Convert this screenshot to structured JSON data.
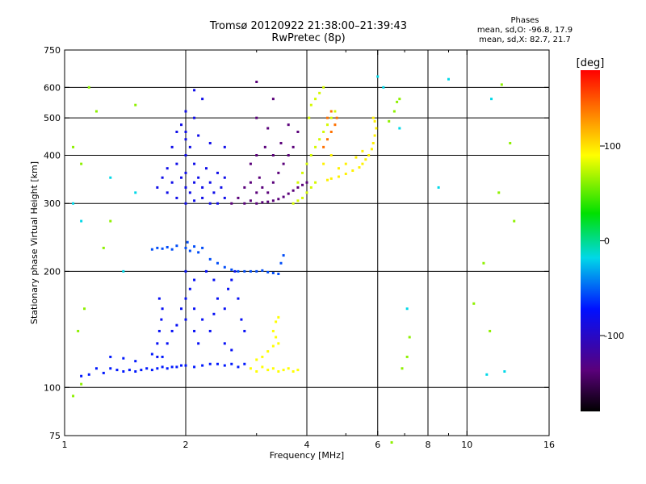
{
  "header": {
    "title_line1": "Tromsø 20120922 21:38:00–21:39:43",
    "title_line2": "RwPretec (8p)"
  },
  "stats": {
    "heading": "Phases",
    "line_o": "mean, sd,O: -96.8, 17.9",
    "line_x": "mean, sd,X:  82.7, 21.7"
  },
  "chart_data": {
    "type": "scatter",
    "xlabel": "Frequency [MHz]",
    "ylabel": "Stationary phase Virtual Height [km]",
    "xscale": "log",
    "yscale": "log",
    "xlim": [
      1,
      16
    ],
    "ylim": [
      75,
      750
    ],
    "x_ticks": [
      1,
      2,
      4,
      6,
      8,
      10,
      16
    ],
    "x_minor_ticks": [
      3,
      5,
      7,
      9
    ],
    "y_ticks": [
      75,
      100,
      200,
      300,
      400,
      500,
      600,
      750
    ],
    "x_gridlines": [
      2,
      4,
      6,
      8,
      10
    ],
    "y_gridlines": [
      100,
      200,
      300,
      400,
      500,
      600
    ],
    "grid": true,
    "colorbar": {
      "label": "[deg]",
      "range": [
        -180,
        180
      ],
      "ticks": [
        100,
        0,
        -100
      ],
      "colormap": "black-purple-blue-cyan-green-yellow-red"
    },
    "series": [
      {
        "values": [
          [
            1.25,
            109
          ],
          [
            1.3,
            112
          ],
          [
            1.35,
            111
          ],
          [
            1.4,
            110
          ],
          [
            1.45,
            111
          ],
          [
            1.5,
            110
          ],
          [
            1.55,
            111
          ],
          [
            1.6,
            112
          ],
          [
            1.65,
            111
          ],
          [
            1.7,
            112
          ],
          [
            1.75,
            113
          ],
          [
            1.8,
            112
          ],
          [
            1.85,
            113
          ],
          [
            1.9,
            113
          ],
          [
            1.95,
            114
          ],
          [
            2.0,
            114
          ],
          [
            2.1,
            113
          ],
          [
            2.2,
            114
          ],
          [
            2.3,
            115
          ],
          [
            2.4,
            115
          ],
          [
            2.5,
            114
          ],
          [
            2.6,
            115
          ],
          [
            2.7,
            113
          ],
          [
            2.8,
            115
          ],
          [
            1.1,
            107
          ],
          [
            1.15,
            108
          ],
          [
            1.2,
            112
          ],
          [
            1.3,
            120
          ],
          [
            1.4,
            119
          ],
          [
            1.5,
            117
          ],
          [
            1.65,
            122
          ],
          [
            1.75,
            120
          ]
        ],
        "phase": -108
      },
      {
        "values": [
          [
            1.7,
            120
          ],
          [
            1.7,
            130
          ],
          [
            1.72,
            140
          ],
          [
            1.74,
            150
          ],
          [
            1.75,
            160
          ],
          [
            1.72,
            170
          ],
          [
            1.8,
            130
          ],
          [
            1.85,
            140
          ],
          [
            1.9,
            145
          ],
          [
            1.95,
            160
          ],
          [
            2.0,
            150
          ],
          [
            2.0,
            170
          ],
          [
            2.05,
            180
          ],
          [
            2.1,
            160
          ],
          [
            2.1,
            140
          ],
          [
            2.15,
            130
          ],
          [
            2.2,
            150
          ],
          [
            2.3,
            140
          ],
          [
            2.35,
            155
          ],
          [
            2.4,
            170
          ],
          [
            2.5,
            160
          ],
          [
            2.55,
            180
          ],
          [
            2.6,
            190
          ],
          [
            2.65,
            200
          ],
          [
            2.7,
            170
          ],
          [
            2.75,
            150
          ],
          [
            2.8,
            140
          ],
          [
            2.5,
            130
          ],
          [
            2.6,
            125
          ],
          [
            2.25,
            200
          ],
          [
            2.35,
            190
          ],
          [
            2.0,
            200
          ],
          [
            2.1,
            190
          ]
        ],
        "phase": -112
      },
      {
        "values": [
          [
            1.65,
            228
          ],
          [
            1.7,
            230
          ],
          [
            1.75,
            229
          ],
          [
            1.8,
            231
          ],
          [
            1.85,
            228
          ],
          [
            1.9,
            233
          ],
          [
            2.0,
            230
          ],
          [
            2.02,
            238
          ],
          [
            2.05,
            226
          ],
          [
            2.1,
            232
          ],
          [
            2.15,
            224
          ],
          [
            2.2,
            230
          ],
          [
            2.3,
            215
          ],
          [
            2.4,
            210
          ],
          [
            2.5,
            205
          ],
          [
            2.6,
            202
          ],
          [
            2.7,
            200
          ],
          [
            2.8,
            200
          ],
          [
            2.9,
            200
          ],
          [
            3.0,
            200
          ],
          [
            3.1,
            201
          ],
          [
            3.2,
            199
          ],
          [
            3.3,
            198
          ],
          [
            3.4,
            197
          ],
          [
            3.45,
            210
          ],
          [
            3.5,
            220
          ]
        ],
        "phase": -95
      },
      {
        "values": [
          [
            1.7,
            330
          ],
          [
            1.75,
            350
          ],
          [
            1.8,
            320
          ],
          [
            1.8,
            370
          ],
          [
            1.85,
            340
          ],
          [
            1.9,
            310
          ],
          [
            1.9,
            380
          ],
          [
            1.95,
            350
          ],
          [
            2.0,
            300
          ],
          [
            2.0,
            330
          ],
          [
            2.0,
            360
          ],
          [
            2.0,
            400
          ],
          [
            2.0,
            440
          ],
          [
            2.0,
            460
          ],
          [
            2.05,
            320
          ],
          [
            2.05,
            420
          ],
          [
            2.1,
            305
          ],
          [
            2.1,
            340
          ],
          [
            2.1,
            380
          ],
          [
            2.15,
            350
          ],
          [
            2.2,
            310
          ],
          [
            2.2,
            330
          ],
          [
            2.25,
            370
          ],
          [
            2.3,
            300
          ],
          [
            2.3,
            340
          ],
          [
            2.35,
            320
          ],
          [
            2.4,
            360
          ],
          [
            2.4,
            300
          ],
          [
            2.45,
            330
          ],
          [
            2.5,
            310
          ],
          [
            2.5,
            350
          ],
          [
            1.85,
            420
          ],
          [
            1.9,
            460
          ],
          [
            1.95,
            480
          ],
          [
            2.0,
            520
          ],
          [
            2.1,
            500
          ],
          [
            2.15,
            450
          ],
          [
            2.3,
            430
          ],
          [
            2.5,
            420
          ],
          [
            2.2,
            560
          ],
          [
            2.1,
            590
          ]
        ],
        "phase": -115
      },
      {
        "values": [
          [
            2.6,
            300
          ],
          [
            2.7,
            310
          ],
          [
            2.8,
            300
          ],
          [
            2.9,
            305
          ],
          [
            3.0,
            300
          ],
          [
            3.1,
            302
          ],
          [
            3.2,
            303
          ],
          [
            3.3,
            305
          ],
          [
            3.4,
            308
          ],
          [
            3.5,
            312
          ],
          [
            3.6,
            318
          ],
          [
            3.7,
            324
          ],
          [
            3.8,
            330
          ],
          [
            3.9,
            335
          ],
          [
            4.0,
            340
          ],
          [
            2.8,
            330
          ],
          [
            2.9,
            340
          ],
          [
            3.0,
            320
          ],
          [
            3.05,
            350
          ],
          [
            3.1,
            330
          ],
          [
            3.2,
            320
          ],
          [
            3.3,
            340
          ],
          [
            3.4,
            360
          ],
          [
            3.5,
            380
          ],
          [
            2.9,
            380
          ],
          [
            3.0,
            400
          ],
          [
            3.15,
            420
          ],
          [
            3.3,
            400
          ],
          [
            3.45,
            430
          ],
          [
            3.6,
            400
          ],
          [
            3.7,
            420
          ],
          [
            3.8,
            460
          ],
          [
            3.6,
            480
          ],
          [
            3.2,
            470
          ],
          [
            3.0,
            500
          ],
          [
            3.3,
            560
          ],
          [
            3.0,
            620
          ]
        ],
        "phase": -140
      },
      {
        "values": [
          [
            3.7,
            300
          ],
          [
            3.8,
            305
          ],
          [
            3.9,
            310
          ],
          [
            4.0,
            320
          ],
          [
            4.1,
            330
          ],
          [
            4.2,
            340
          ],
          [
            3.8,
            340
          ],
          [
            3.9,
            360
          ],
          [
            4.0,
            380
          ],
          [
            4.1,
            400
          ],
          [
            4.2,
            420
          ],
          [
            4.3,
            440
          ],
          [
            4.4,
            460
          ],
          [
            4.5,
            480
          ],
          [
            4.6,
            500
          ],
          [
            4.7,
            520
          ],
          [
            4.05,
            500
          ],
          [
            4.1,
            540
          ],
          [
            4.2,
            560
          ],
          [
            4.3,
            580
          ],
          [
            4.4,
            600
          ]
        ],
        "phase": 75
      },
      {
        "values": [
          [
            4.5,
            345
          ],
          [
            4.6,
            348
          ],
          [
            4.8,
            352
          ],
          [
            5.0,
            358
          ],
          [
            5.2,
            365
          ],
          [
            5.4,
            372
          ],
          [
            5.5,
            380
          ],
          [
            5.6,
            390
          ],
          [
            5.7,
            400
          ],
          [
            5.8,
            415
          ],
          [
            5.85,
            430
          ],
          [
            5.9,
            450
          ],
          [
            5.95,
            470
          ],
          [
            5.9,
            490
          ],
          [
            5.85,
            500
          ],
          [
            4.4,
            380
          ],
          [
            4.6,
            400
          ],
          [
            4.8,
            370
          ],
          [
            5.0,
            380
          ],
          [
            5.3,
            395
          ],
          [
            5.5,
            410
          ]
        ],
        "phase": 95
      },
      {
        "values": [
          [
            4.4,
            420
          ],
          [
            4.5,
            440
          ],
          [
            4.6,
            460
          ],
          [
            4.7,
            480
          ],
          [
            4.75,
            500
          ],
          [
            4.6,
            520
          ],
          [
            4.5,
            500
          ]
        ],
        "phase": 140
      },
      {
        "values": [
          [
            2.9,
            112
          ],
          [
            3.0,
            110
          ],
          [
            3.1,
            113
          ],
          [
            3.2,
            111
          ],
          [
            3.3,
            112
          ],
          [
            3.4,
            110
          ],
          [
            3.5,
            111
          ],
          [
            3.6,
            112
          ],
          [
            3.7,
            110
          ],
          [
            3.8,
            111
          ],
          [
            3.0,
            118
          ],
          [
            3.1,
            120
          ],
          [
            3.2,
            124
          ],
          [
            3.3,
            128
          ],
          [
            3.35,
            135
          ],
          [
            3.4,
            130
          ],
          [
            3.3,
            140
          ],
          [
            3.35,
            148
          ],
          [
            3.4,
            152
          ]
        ],
        "phase": 90
      },
      {
        "values": [
          [
            1.05,
            95
          ],
          [
            1.1,
            102
          ],
          [
            1.08,
            140
          ],
          [
            1.12,
            160
          ],
          [
            1.15,
            600
          ],
          [
            1.1,
            380
          ],
          [
            1.2,
            520
          ],
          [
            1.25,
            230
          ],
          [
            1.3,
            270
          ],
          [
            1.05,
            420
          ],
          [
            1.5,
            540
          ],
          [
            6.4,
            490
          ],
          [
            6.6,
            520
          ],
          [
            6.8,
            560
          ],
          [
            6.7,
            550
          ],
          [
            7.1,
            120
          ],
          [
            7.2,
            135
          ],
          [
            6.9,
            112
          ],
          [
            6.5,
            72
          ],
          [
            12.8,
            430
          ],
          [
            12.2,
            610
          ],
          [
            11.4,
            140
          ],
          [
            11.0,
            210
          ],
          [
            12.0,
            320
          ],
          [
            13.1,
            270
          ],
          [
            10.4,
            165
          ]
        ],
        "phase": 50
      },
      {
        "values": [
          [
            1.1,
            270
          ],
          [
            1.05,
            300
          ],
          [
            1.4,
            200
          ],
          [
            1.3,
            350
          ],
          [
            1.5,
            320
          ],
          [
            6.2,
            600
          ],
          [
            6.0,
            640
          ],
          [
            6.8,
            470
          ],
          [
            7.1,
            160
          ],
          [
            8.5,
            330
          ],
          [
            9.0,
            630
          ],
          [
            11.5,
            560
          ],
          [
            11.2,
            108
          ],
          [
            12.4,
            110
          ]
        ],
        "phase": -60
      }
    ]
  },
  "colors": {
    "background": "#ffffff",
    "axes": "#000000",
    "grid": "#000000"
  }
}
